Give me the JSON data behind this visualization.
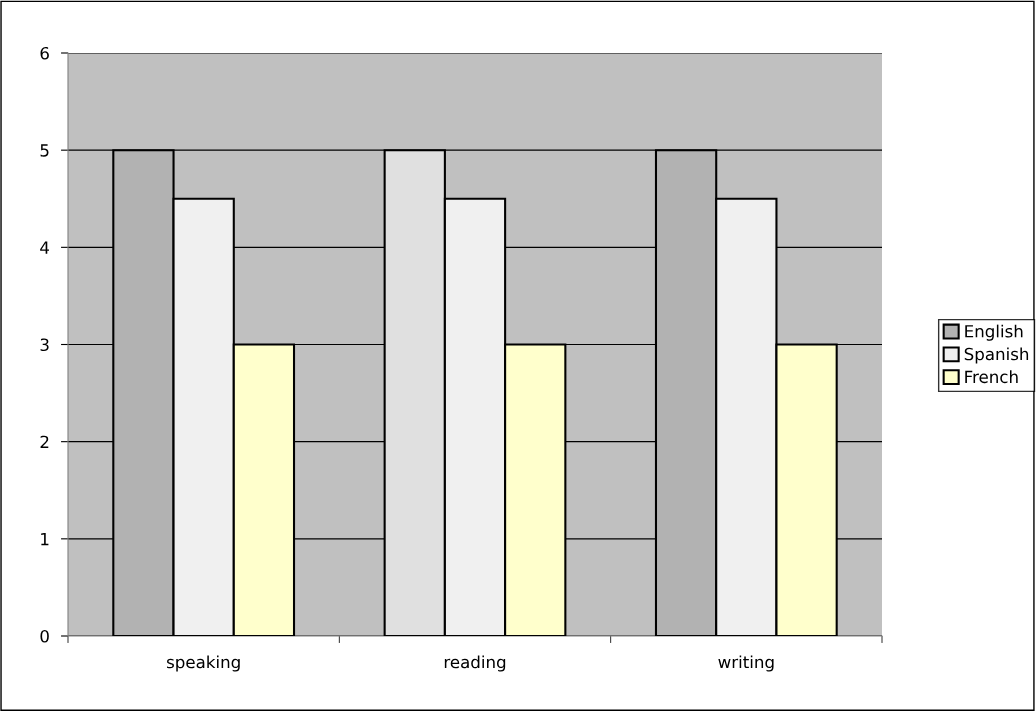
{
  "chart_data": {
    "type": "bar",
    "categories": [
      "speaking",
      "reading",
      "writing"
    ],
    "series": [
      {
        "name": "English",
        "color": "#b2b2b2",
        "colors": [
          "#b2b2b2",
          "#e0e0e0",
          "#b2b2b2"
        ],
        "values": [
          5,
          5,
          5
        ]
      },
      {
        "name": "Spanish",
        "color": "#f0f0f0",
        "values": [
          4.5,
          4.5,
          4.5
        ]
      },
      {
        "name": "French",
        "color": "#ffffcc",
        "values": [
          3,
          3,
          3
        ]
      }
    ],
    "ylim": [
      0,
      6
    ],
    "yticks": [
      0,
      1,
      2,
      3,
      4,
      5,
      6
    ],
    "grid": "y",
    "legend": "right"
  }
}
